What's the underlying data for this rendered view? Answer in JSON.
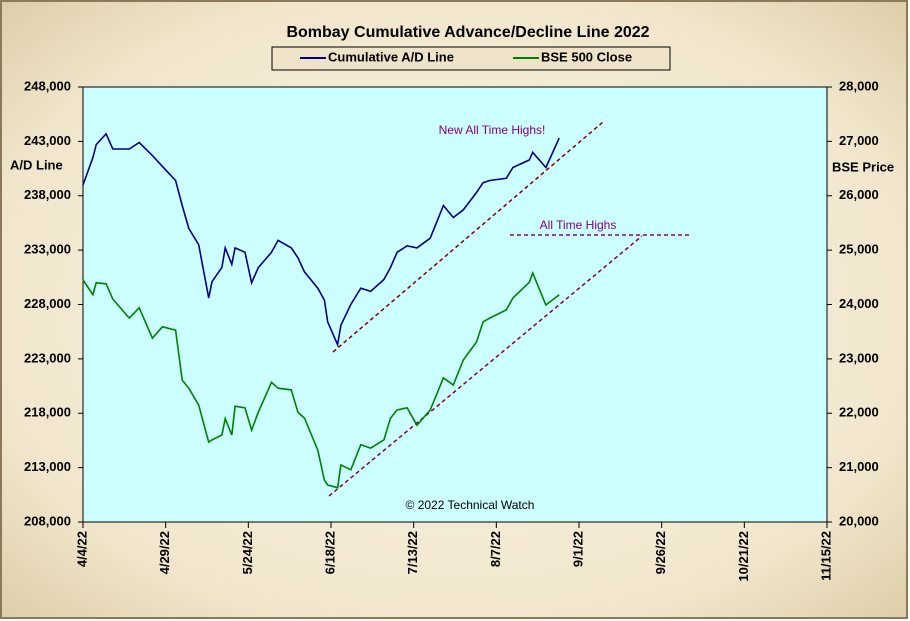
{
  "chart_data": {
    "type": "line",
    "title": "Bombay Cumulative Advance/Decline Line 2022",
    "y_label": "A/D Line",
    "y2_label": "BSE Price",
    "annotations": [
      "New All Time Highs!",
      "All Time Highs",
      "© 2022 Technical Watch"
    ],
    "x": [
      "4/4/22",
      "4/7/22",
      "4/8/22",
      "4/11/22",
      "4/13/22",
      "4/18/22",
      "4/21/22",
      "4/25/22",
      "4/28/22",
      "5/2/22",
      "5/4/22",
      "5/6/22",
      "5/9/22",
      "5/12/22",
      "5/13/22",
      "5/16/22",
      "5/17/22",
      "5/19/22",
      "5/20/22",
      "5/23/22",
      "5/25/22",
      "5/27/22",
      "5/31/22",
      "6/2/22",
      "6/6/22",
      "6/8/22",
      "6/10/22",
      "6/14/22",
      "6/16/22",
      "6/17/22",
      "6/20/22",
      "6/21/22",
      "6/24/22",
      "6/27/22",
      "6/30/22",
      "7/4/22",
      "7/6/22",
      "7/8/22",
      "7/11/22",
      "7/14/22",
      "7/18/22",
      "7/22/22",
      "7/25/22",
      "7/28/22",
      "8/1/22",
      "8/3/22",
      "8/5/22",
      "8/10/22",
      "8/12/22",
      "8/17/22",
      "8/18/22",
      "8/22/22",
      "8/26/22"
    ],
    "series": [
      {
        "name": "Cumulative A/D Line",
        "color": "#000080",
        "axis": "y",
        "values": [
          239000,
          241500,
          242700,
          243700,
          242300,
          242300,
          242900,
          241700,
          240700,
          239400,
          237100,
          235000,
          233500,
          228600,
          230100,
          231400,
          233200,
          231700,
          233200,
          232800,
          230000,
          231400,
          232800,
          233900,
          233200,
          232300,
          231000,
          229500,
          228400,
          226400,
          224300,
          226100,
          228000,
          229500,
          229200,
          230300,
          231400,
          232800,
          233400,
          233200,
          234100,
          237100,
          236000,
          236700,
          238300,
          239200,
          239400,
          239600,
          240600,
          241300,
          242000,
          240600,
          243300
        ]
      },
      {
        "name": "BSE 500 Close",
        "color": "#008000",
        "axis": "y2",
        "values": [
          24450,
          24180,
          24400,
          24380,
          24100,
          23750,
          23940,
          23380,
          23590,
          23530,
          22610,
          22460,
          22150,
          21470,
          21510,
          21600,
          21900,
          21600,
          22130,
          22100,
          21690,
          22020,
          22570,
          22460,
          22430,
          22020,
          21910,
          21320,
          20770,
          20680,
          20630,
          21050,
          20960,
          21420,
          21360,
          21510,
          21910,
          22060,
          22100,
          21780,
          22060,
          22650,
          22520,
          22980,
          23310,
          23680,
          23750,
          23900,
          24120,
          24410,
          24580,
          23990,
          24180
        ]
      }
    ],
    "xlim": [
      "4/4/22",
      "11/15/22"
    ],
    "xticks": [
      "4/4/22",
      "4/29/22",
      "5/24/22",
      "6/18/22",
      "7/13/22",
      "8/7/22",
      "9/1/22",
      "9/26/22",
      "10/21/22",
      "11/15/22"
    ],
    "ylim": [
      208000,
      248000
    ],
    "yticks": [
      {
        "value": 208000,
        "label": "208,000"
      },
      {
        "value": 213000,
        "label": "213,000"
      },
      {
        "value": 218000,
        "label": "218,000"
      },
      {
        "value": 223000,
        "label": "223,000"
      },
      {
        "value": 228000,
        "label": "228,000"
      },
      {
        "value": 233000,
        "label": "233,000"
      },
      {
        "value": 238000,
        "label": "238,000"
      },
      {
        "value": 243000,
        "label": "243,000"
      },
      {
        "value": 248000,
        "label": "248,000"
      }
    ],
    "y2lim": [
      20000,
      28000
    ],
    "y2ticks": [
      {
        "value": 20000,
        "label": "20,000"
      },
      {
        "value": 21000,
        "label": "21,000"
      },
      {
        "value": 22000,
        "label": "22,000"
      },
      {
        "value": 23000,
        "label": "23,000"
      },
      {
        "value": 24000,
        "label": "24,000"
      },
      {
        "value": 25000,
        "label": "25,000"
      },
      {
        "value": 26000,
        "label": "26,000"
      },
      {
        "value": 27000,
        "label": "27,000"
      },
      {
        "value": 28000,
        "label": "28,000"
      }
    ],
    "grid": false,
    "plot_background": "#ccffff"
  }
}
